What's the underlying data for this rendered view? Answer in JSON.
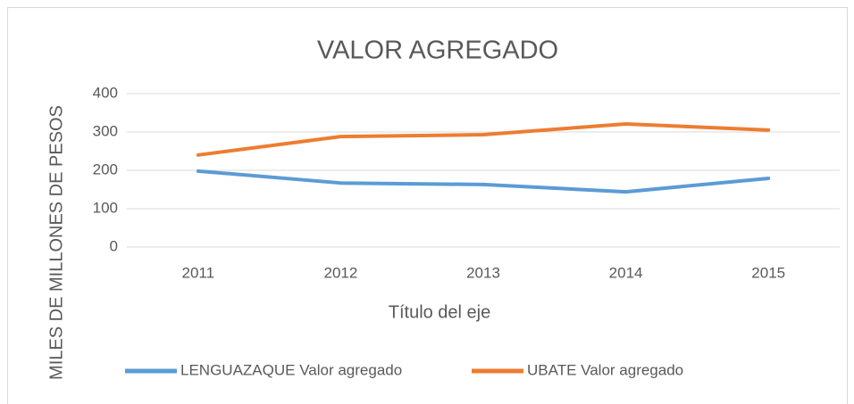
{
  "chart_data": {
    "type": "line",
    "title": "VALOR AGREGADO",
    "x_label": "Título del eje",
    "y_label": "MILES DE MILLONES DE PESOS",
    "categories": [
      "2011",
      "2012",
      "2013",
      "2014",
      "2015"
    ],
    "series": [
      {
        "name": "LENGUAZAQUE Valor agregado",
        "color": "#5b9bd5",
        "values": [
          198,
          167,
          163,
          144,
          179
        ]
      },
      {
        "name": "UBATE Valor agregado",
        "color": "#ed7d31",
        "values": [
          240,
          288,
          293,
          321,
          305
        ]
      }
    ],
    "ylim": [
      0,
      400
    ],
    "yticks": [
      0,
      100,
      200,
      300,
      400
    ],
    "grid": true,
    "legend": "bottom"
  }
}
